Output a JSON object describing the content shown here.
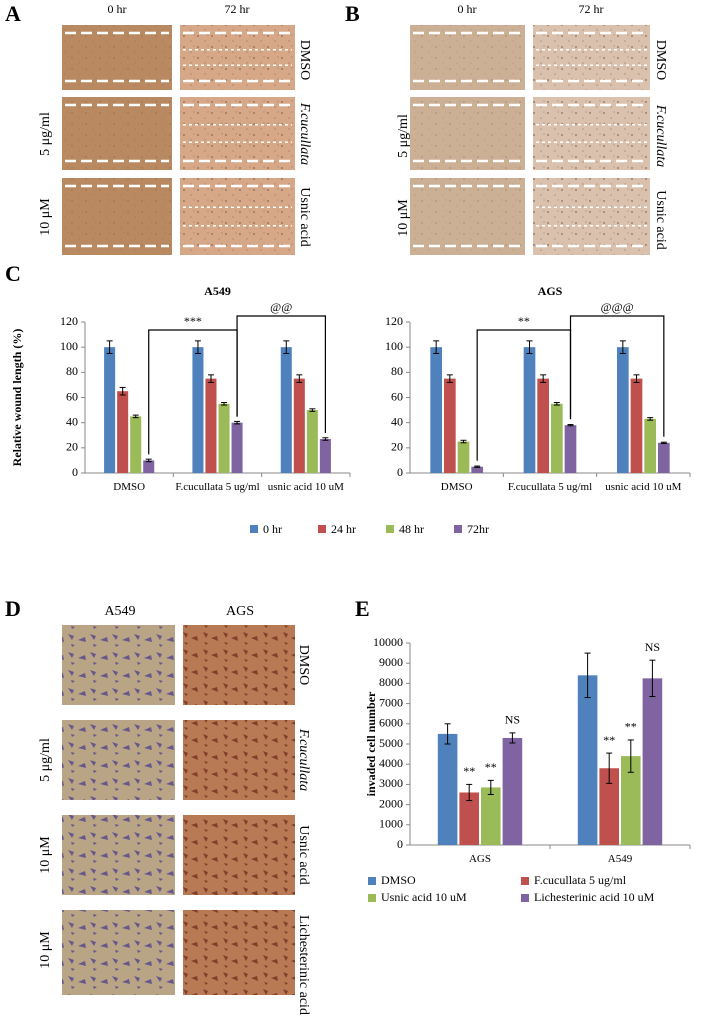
{
  "figure": {
    "panel_labels": [
      "A",
      "B",
      "C",
      "D",
      "E"
    ],
    "wound": {
      "time_labels": [
        "0 hr",
        "72 hr"
      ],
      "treatments": [
        "DMSO",
        "F.cucullata",
        "Usnic acid"
      ],
      "doses": [
        "5 μg/ml",
        "10 μM"
      ]
    },
    "transwell": {
      "cell_lines": [
        "A549",
        "AGS"
      ],
      "treatments": [
        "DMSO",
        "F.cucullata",
        "Usnic acid",
        "Lichesterinic acid"
      ],
      "doses": [
        "5 μg/ml",
        "10 μM",
        "10 μM"
      ]
    }
  },
  "chart_data": [
    {
      "type": "bar",
      "title": "A549",
      "ylabel": "Relative wound length (%)",
      "categories": [
        "DMSO",
        "F.cucullata 5 ug/ml",
        "usnic acid 10 uM"
      ],
      "series": [
        {
          "name": "0 hr",
          "color": "#4f81bd",
          "values": [
            100,
            100,
            100
          ],
          "errors": [
            5,
            5,
            5
          ]
        },
        {
          "name": "24 hr",
          "color": "#c0504d",
          "values": [
            65,
            75,
            75
          ],
          "errors": [
            3,
            3,
            3
          ]
        },
        {
          "name": "48 hr",
          "color": "#9bbb59",
          "values": [
            45,
            55,
            50
          ],
          "errors": [
            1,
            1,
            1
          ]
        },
        {
          "name": "72hr",
          "color": "#8064a2",
          "values": [
            10,
            40,
            27
          ],
          "errors": [
            1,
            1,
            1
          ]
        }
      ],
      "annotations": [
        "***",
        "@@"
      ],
      "ylim": [
        0,
        120
      ],
      "yticks": [
        0,
        20,
        40,
        60,
        80,
        100,
        120
      ]
    },
    {
      "type": "bar",
      "title": "AGS",
      "categories": [
        "DMSO",
        "F.cucullata 5 ug/ml",
        "usnic acid 10 uM"
      ],
      "series": [
        {
          "name": "0 hr",
          "color": "#4f81bd",
          "values": [
            100,
            100,
            100
          ],
          "errors": [
            5,
            5,
            5
          ]
        },
        {
          "name": "24 hr",
          "color": "#c0504d",
          "values": [
            75,
            75,
            75
          ],
          "errors": [
            3,
            3,
            3
          ]
        },
        {
          "name": "48 hr",
          "color": "#9bbb59",
          "values": [
            25,
            55,
            43
          ],
          "errors": [
            1,
            1,
            1
          ]
        },
        {
          "name": "72hr",
          "color": "#8064a2",
          "values": [
            5,
            38,
            24
          ],
          "errors": [
            0.5,
            0.5,
            0.5
          ]
        }
      ],
      "annotations": [
        "**",
        "@@@"
      ],
      "ylim": [
        0,
        120
      ],
      "yticks": [
        0,
        20,
        40,
        60,
        80,
        100,
        120
      ]
    },
    {
      "type": "bar",
      "ylabel": "invaded cell number",
      "categories": [
        "AGS",
        "A549"
      ],
      "series": [
        {
          "name": "DMSO",
          "color": "#4f81bd",
          "values": [
            5500,
            8400
          ],
          "errors": [
            500,
            1100
          ],
          "annotations": [
            null,
            null
          ]
        },
        {
          "name": "F.cucullata 5 ug/ml",
          "color": "#c0504d",
          "values": [
            2600,
            3800
          ],
          "errors": [
            400,
            750
          ],
          "annotations": [
            "**",
            "**"
          ]
        },
        {
          "name": "Usnic acid 10 uM",
          "color": "#9bbb59",
          "values": [
            2850,
            4400
          ],
          "errors": [
            350,
            800
          ],
          "annotations": [
            "**",
            "**"
          ]
        },
        {
          "name": "Lichesterinic acid 10 uM",
          "color": "#8064a2",
          "values": [
            5300,
            8250
          ],
          "errors": [
            250,
            900
          ],
          "annotations": [
            "NS",
            "NS"
          ]
        }
      ],
      "ylim": [
        0,
        10000
      ],
      "yticks": [
        0,
        1000,
        2000,
        3000,
        4000,
        5000,
        6000,
        7000,
        8000,
        9000,
        10000
      ]
    }
  ]
}
